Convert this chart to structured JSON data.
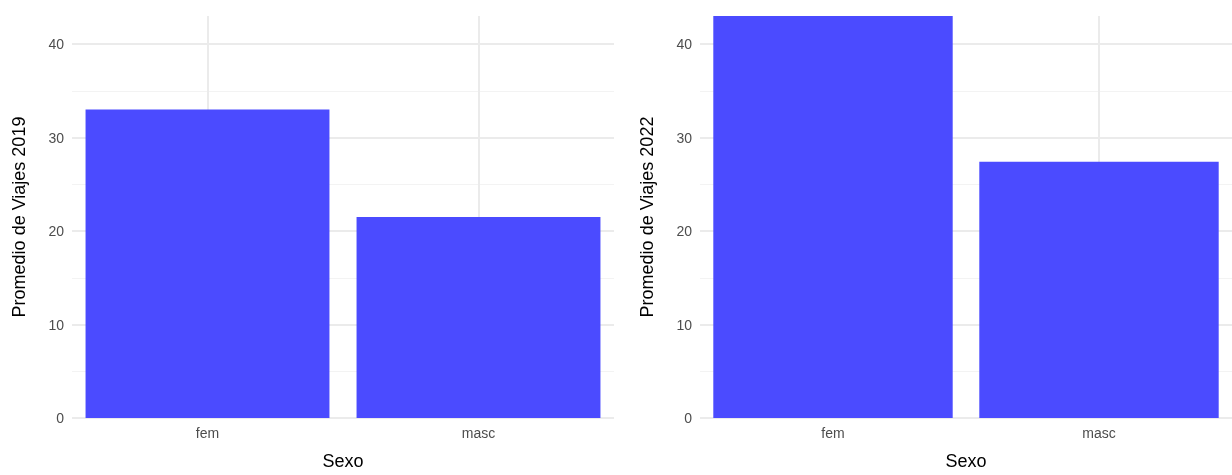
{
  "chart_data": [
    {
      "type": "bar",
      "xlabel": "Sexo",
      "ylabel": "Promedio de Viajes 2019",
      "categories": [
        "fem",
        "masc"
      ],
      "values": [
        33,
        21.5
      ],
      "color": "#4b4bff",
      "ylim": [
        0,
        43
      ],
      "yticks": [
        0,
        10,
        20,
        30,
        40
      ],
      "grid": true
    },
    {
      "type": "bar",
      "xlabel": "Sexo",
      "ylabel": "Promedio de Viajes 2022",
      "categories": [
        "fem",
        "masc"
      ],
      "values": [
        43,
        27.4
      ],
      "color": "#4b4bff",
      "ylim": [
        0,
        43
      ],
      "yticks": [
        0,
        10,
        20,
        30,
        40
      ],
      "grid": true
    }
  ]
}
